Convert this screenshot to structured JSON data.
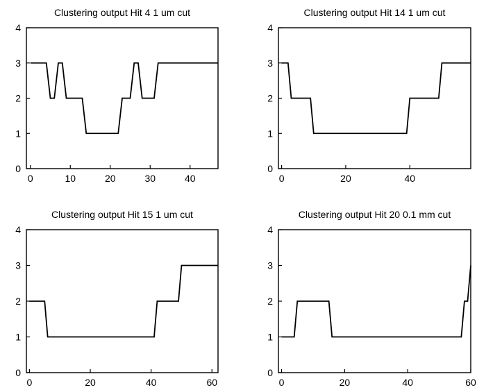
{
  "chart_data": [
    {
      "type": "line",
      "title": "Clustering output Hit 4 1 um cut",
      "xlim": [
        -1,
        47
      ],
      "ylim": [
        0,
        4
      ],
      "xticks": [
        0,
        10,
        20,
        30,
        40
      ],
      "yticks": [
        0,
        1,
        2,
        3,
        4
      ],
      "grid": false,
      "series": [
        {
          "x": [
            0,
            3,
            4,
            5,
            6,
            7,
            8,
            9,
            10,
            11,
            12,
            13,
            14,
            15,
            16,
            17,
            18,
            19,
            20,
            21,
            22,
            23,
            24,
            25,
            26,
            27,
            28,
            29,
            30,
            31,
            32,
            33,
            47
          ],
          "values": [
            3,
            3,
            3,
            2,
            2,
            3,
            3,
            2,
            2,
            2,
            2,
            2,
            1,
            1,
            1,
            1,
            1,
            1,
            1,
            1,
            1,
            2,
            2,
            2,
            3,
            3,
            2,
            2,
            2,
            2,
            3,
            3,
            3
          ]
        }
      ]
    },
    {
      "type": "line",
      "title": "Clustering output Hit 14 1 um cut",
      "xlim": [
        -1,
        59
      ],
      "ylim": [
        0,
        4
      ],
      "xticks": [
        0,
        20,
        40
      ],
      "yticks": [
        0,
        1,
        2,
        3,
        4
      ],
      "grid": false,
      "series": [
        {
          "x": [
            0,
            2,
            3,
            9,
            10,
            39,
            40,
            49,
            50,
            59
          ],
          "values": [
            3,
            3,
            2,
            2,
            1,
            1,
            2,
            2,
            3,
            3
          ]
        }
      ]
    },
    {
      "type": "line",
      "title": "Clustering output Hit 15 1 um cut",
      "xlim": [
        -1,
        62
      ],
      "ylim": [
        0,
        4
      ],
      "xticks": [
        0,
        20,
        40,
        60
      ],
      "yticks": [
        0,
        1,
        2,
        3,
        4
      ],
      "grid": false,
      "series": [
        {
          "x": [
            0,
            5,
            6,
            41,
            42,
            49,
            50,
            62
          ],
          "values": [
            2,
            2,
            1,
            1,
            2,
            2,
            3,
            3
          ]
        }
      ]
    },
    {
      "type": "line",
      "title": "Clustering output Hit 20 0.1 mm cut",
      "xlim": [
        -1,
        60
      ],
      "ylim": [
        0,
        4
      ],
      "xticks": [
        0,
        20,
        40,
        60
      ],
      "yticks": [
        0,
        1,
        2,
        3,
        4
      ],
      "grid": false,
      "series": [
        {
          "x": [
            0,
            4,
            5,
            15,
            16,
            57,
            58,
            59,
            60
          ],
          "values": [
            1,
            1,
            2,
            2,
            1,
            1,
            2,
            2,
            3
          ]
        }
      ]
    }
  ]
}
